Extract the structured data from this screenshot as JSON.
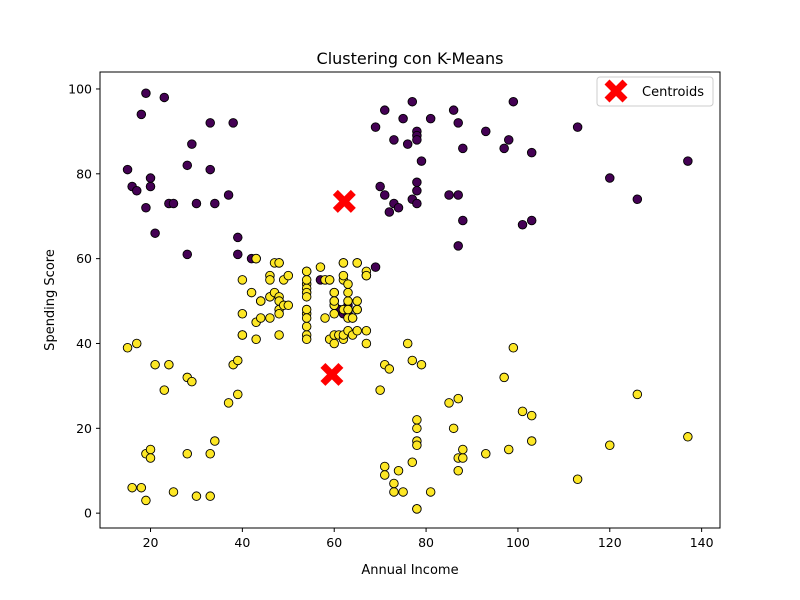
{
  "chart_data": {
    "type": "scatter",
    "title": "Clustering con K-Means",
    "xlabel": "Annual Income",
    "ylabel": "Spending Score",
    "xlim": [
      9,
      144
    ],
    "ylim": [
      -3.5,
      104
    ],
    "xticks": [
      20,
      40,
      60,
      80,
      100,
      120,
      140
    ],
    "yticks": [
      0,
      20,
      40,
      60,
      80,
      100
    ],
    "grid": false,
    "legend": {
      "position": "top-right",
      "entries": [
        "Centroids"
      ]
    },
    "colors": {
      "cluster_0": "#440154",
      "cluster_1": "#fde725",
      "centroid": "#ff0000"
    },
    "clusters": [
      {
        "color": "#440154",
        "points": [
          [
            15,
            81
          ],
          [
            16,
            77
          ],
          [
            17,
            76
          ],
          [
            18,
            94
          ],
          [
            19,
            72
          ],
          [
            19,
            99
          ],
          [
            20,
            77
          ],
          [
            20,
            79
          ],
          [
            21,
            66
          ],
          [
            23,
            98
          ],
          [
            24,
            73
          ],
          [
            25,
            73
          ],
          [
            28,
            82
          ],
          [
            28,
            61
          ],
          [
            29,
            87
          ],
          [
            30,
            73
          ],
          [
            33,
            92
          ],
          [
            33,
            81
          ],
          [
            34,
            73
          ],
          [
            37,
            75
          ],
          [
            38,
            92
          ],
          [
            39,
            65
          ],
          [
            39,
            61
          ],
          [
            42,
            60
          ],
          [
            43,
            60
          ],
          [
            44,
            50
          ],
          [
            46,
            51
          ],
          [
            48,
            59
          ],
          [
            54,
            57
          ],
          [
            57,
            55
          ],
          [
            59,
            55
          ],
          [
            60,
            52
          ],
          [
            60,
            50
          ],
          [
            60,
            49
          ],
          [
            61,
            48
          ],
          [
            62,
            47
          ],
          [
            62,
            59
          ],
          [
            63,
            49
          ],
          [
            63,
            47
          ],
          [
            64,
            46
          ],
          [
            65,
            48
          ],
          [
            65,
            59
          ],
          [
            67,
            56
          ],
          [
            69,
            58
          ],
          [
            69,
            91
          ],
          [
            70,
            77
          ],
          [
            71,
            95
          ],
          [
            71,
            75
          ],
          [
            72,
            71
          ],
          [
            73,
            88
          ],
          [
            73,
            73
          ],
          [
            74,
            72
          ],
          [
            75,
            93
          ],
          [
            76,
            87
          ],
          [
            77,
            97
          ],
          [
            77,
            74
          ],
          [
            78,
            90
          ],
          [
            78,
            89
          ],
          [
            78,
            88
          ],
          [
            78,
            78
          ],
          [
            78,
            76
          ],
          [
            78,
            73
          ],
          [
            79,
            83
          ],
          [
            81,
            93
          ],
          [
            85,
            75
          ],
          [
            86,
            95
          ],
          [
            87,
            92
          ],
          [
            87,
            75
          ],
          [
            87,
            63
          ],
          [
            88,
            86
          ],
          [
            88,
            69
          ],
          [
            93,
            90
          ],
          [
            97,
            86
          ],
          [
            98,
            88
          ],
          [
            99,
            97
          ],
          [
            101,
            68
          ],
          [
            103,
            85
          ],
          [
            103,
            69
          ],
          [
            113,
            91
          ],
          [
            120,
            79
          ],
          [
            126,
            74
          ],
          [
            137,
            83
          ]
        ]
      },
      {
        "color": "#fde725",
        "points": [
          [
            15,
            39
          ],
          [
            16,
            6
          ],
          [
            17,
            40
          ],
          [
            18,
            6
          ],
          [
            19,
            3
          ],
          [
            19,
            14
          ],
          [
            20,
            15
          ],
          [
            20,
            13
          ],
          [
            21,
            35
          ],
          [
            23,
            29
          ],
          [
            24,
            35
          ],
          [
            25,
            5
          ],
          [
            28,
            14
          ],
          [
            28,
            32
          ],
          [
            29,
            31
          ],
          [
            30,
            4
          ],
          [
            33,
            4
          ],
          [
            33,
            14
          ],
          [
            34,
            17
          ],
          [
            37,
            26
          ],
          [
            38,
            35
          ],
          [
            39,
            36
          ],
          [
            39,
            28
          ],
          [
            40,
            55
          ],
          [
            40,
            47
          ],
          [
            40,
            42
          ],
          [
            40,
            42
          ],
          [
            42,
            52
          ],
          [
            43,
            60
          ],
          [
            43,
            45
          ],
          [
            43,
            41
          ],
          [
            44,
            50
          ],
          [
            44,
            46
          ],
          [
            46,
            51
          ],
          [
            46,
            46
          ],
          [
            46,
            56
          ],
          [
            46,
            55
          ],
          [
            47,
            52
          ],
          [
            47,
            59
          ],
          [
            48,
            51
          ],
          [
            48,
            59
          ],
          [
            48,
            50
          ],
          [
            48,
            48
          ],
          [
            48,
            47
          ],
          [
            48,
            42
          ],
          [
            49,
            49
          ],
          [
            49,
            55
          ],
          [
            50,
            56
          ],
          [
            50,
            49
          ],
          [
            54,
            47
          ],
          [
            54,
            54
          ],
          [
            54,
            53
          ],
          [
            54,
            48
          ],
          [
            54,
            52
          ],
          [
            54,
            42
          ],
          [
            54,
            51
          ],
          [
            54,
            55
          ],
          [
            54,
            41
          ],
          [
            54,
            44
          ],
          [
            54,
            57
          ],
          [
            54,
            46
          ],
          [
            57,
            58
          ],
          [
            58,
            55
          ],
          [
            58,
            46
          ],
          [
            59,
            55
          ],
          [
            59,
            41
          ],
          [
            60,
            49
          ],
          [
            60,
            40
          ],
          [
            60,
            42
          ],
          [
            60,
            52
          ],
          [
            60,
            47
          ],
          [
            60,
            50
          ],
          [
            61,
            42
          ],
          [
            62,
            41
          ],
          [
            62,
            48
          ],
          [
            62,
            59
          ],
          [
            62,
            55
          ],
          [
            62,
            56
          ],
          [
            62,
            42
          ],
          [
            63,
            50
          ],
          [
            63,
            46
          ],
          [
            63,
            43
          ],
          [
            63,
            48
          ],
          [
            63,
            52
          ],
          [
            63,
            54
          ],
          [
            64,
            42
          ],
          [
            64,
            46
          ],
          [
            65,
            48
          ],
          [
            65,
            50
          ],
          [
            65,
            43
          ],
          [
            65,
            59
          ],
          [
            67,
            43
          ],
          [
            67,
            57
          ],
          [
            67,
            56
          ],
          [
            67,
            40
          ],
          [
            70,
            29
          ],
          [
            71,
            35
          ],
          [
            71,
            11
          ],
          [
            71,
            9
          ],
          [
            72,
            34
          ],
          [
            73,
            5
          ],
          [
            73,
            7
          ],
          [
            74,
            10
          ],
          [
            75,
            5
          ],
          [
            76,
            40
          ],
          [
            77,
            12
          ],
          [
            77,
            36
          ],
          [
            78,
            22
          ],
          [
            78,
            17
          ],
          [
            78,
            20
          ],
          [
            78,
            16
          ],
          [
            78,
            1
          ],
          [
            78,
            1
          ],
          [
            79,
            35
          ],
          [
            81,
            5
          ],
          [
            85,
            26
          ],
          [
            86,
            20
          ],
          [
            87,
            27
          ],
          [
            87,
            13
          ],
          [
            87,
            10
          ],
          [
            88,
            13
          ],
          [
            88,
            15
          ],
          [
            93,
            14
          ],
          [
            97,
            32
          ],
          [
            98,
            15
          ],
          [
            99,
            39
          ],
          [
            101,
            24
          ],
          [
            103,
            17
          ],
          [
            103,
            23
          ],
          [
            113,
            8
          ],
          [
            120,
            16
          ],
          [
            126,
            28
          ],
          [
            137,
            18
          ]
        ]
      }
    ],
    "centroids": [
      [
        62.2,
        73.5
      ],
      [
        59.5,
        32.7
      ]
    ]
  }
}
